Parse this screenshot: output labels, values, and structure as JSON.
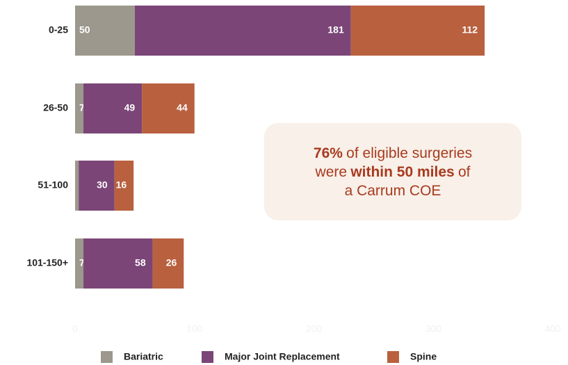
{
  "chart_data": {
    "type": "bar",
    "orientation": "horizontal",
    "stacked": true,
    "categories": [
      "0-25",
      "26-50",
      "51-100",
      "101-150+"
    ],
    "series": [
      {
        "name": "Bariatric",
        "color": "#9c988d",
        "values": [
          50,
          7,
          3,
          7
        ]
      },
      {
        "name": "Major Joint Replacement",
        "color": "#7b4577",
        "values": [
          181,
          49,
          30,
          58
        ]
      },
      {
        "name": "Spine",
        "color": "#b9603f",
        "values": [
          112,
          44,
          16,
          26
        ]
      }
    ],
    "xlim": [
      0,
      400
    ],
    "xticks": [
      0,
      100,
      200,
      300,
      400
    ],
    "legend": "bottom",
    "annotation": {
      "lines": [
        [
          {
            "text": "76%",
            "bold": true
          },
          {
            "text": "of eligible surgeries"
          }
        ],
        [
          {
            "text": "were"
          },
          {
            "text": "within 50 miles",
            "bold": true
          },
          {
            "text": "of"
          }
        ],
        [
          {
            "text": "a Carrum COE"
          }
        ]
      ]
    }
  }
}
